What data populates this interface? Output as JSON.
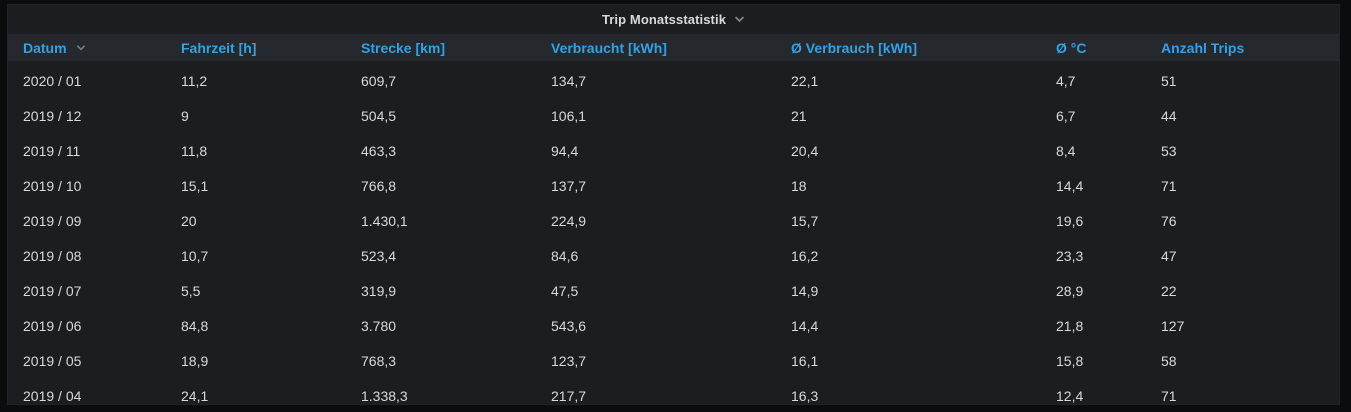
{
  "panel": {
    "title": "Trip Monatsstatistik"
  },
  "table": {
    "columns": [
      {
        "label": "Datum",
        "sorted": true
      },
      {
        "label": "Fahrzeit [h]",
        "sorted": false
      },
      {
        "label": "Strecke [km]",
        "sorted": false
      },
      {
        "label": "Verbraucht [kWh]",
        "sorted": false
      },
      {
        "label": "Ø Verbrauch [kWh]",
        "sorted": false
      },
      {
        "label": "Ø °C",
        "sorted": false
      },
      {
        "label": "Anzahl Trips",
        "sorted": false
      }
    ],
    "rows": [
      [
        "2020 / 01",
        "11,2",
        "609,7",
        "134,7",
        "22,1",
        "4,7",
        "51"
      ],
      [
        "2019 / 12",
        "9",
        "504,5",
        "106,1",
        "21",
        "6,7",
        "44"
      ],
      [
        "2019 / 11",
        "11,8",
        "463,3",
        "94,4",
        "20,4",
        "8,4",
        "53"
      ],
      [
        "2019 / 10",
        "15,1",
        "766,8",
        "137,7",
        "18",
        "14,4",
        "71"
      ],
      [
        "2019 / 09",
        "20",
        "1.430,1",
        "224,9",
        "15,7",
        "19,6",
        "76"
      ],
      [
        "2019 / 08",
        "10,7",
        "523,4",
        "84,6",
        "16,2",
        "23,3",
        "47"
      ],
      [
        "2019 / 07",
        "5,5",
        "319,9",
        "47,5",
        "14,9",
        "28,9",
        "22"
      ],
      [
        "2019 / 06",
        "84,8",
        "3.780",
        "543,6",
        "14,4",
        "21,8",
        "127"
      ],
      [
        "2019 / 05",
        "18,9",
        "768,3",
        "123,7",
        "16,1",
        "15,8",
        "58"
      ],
      [
        "2019 / 04",
        "24,1",
        "1.338,3",
        "217,7",
        "16,3",
        "12,4",
        "71"
      ]
    ]
  },
  "icons": {
    "title_chevron": "chevron-down",
    "datum_sort_chevron": "chevron-down"
  },
  "colors": {
    "page_bg": "#0b0c0e",
    "panel_bg": "#1b1d21",
    "panel_border": "#212327",
    "header_row_bg": "#25282d",
    "header_text": "#33a2e5",
    "body_text": "#d8d9da",
    "title_text": "#d8d9da",
    "chevron_gray": "#878b91",
    "sort_chevron_color": "#6f7d8a"
  }
}
